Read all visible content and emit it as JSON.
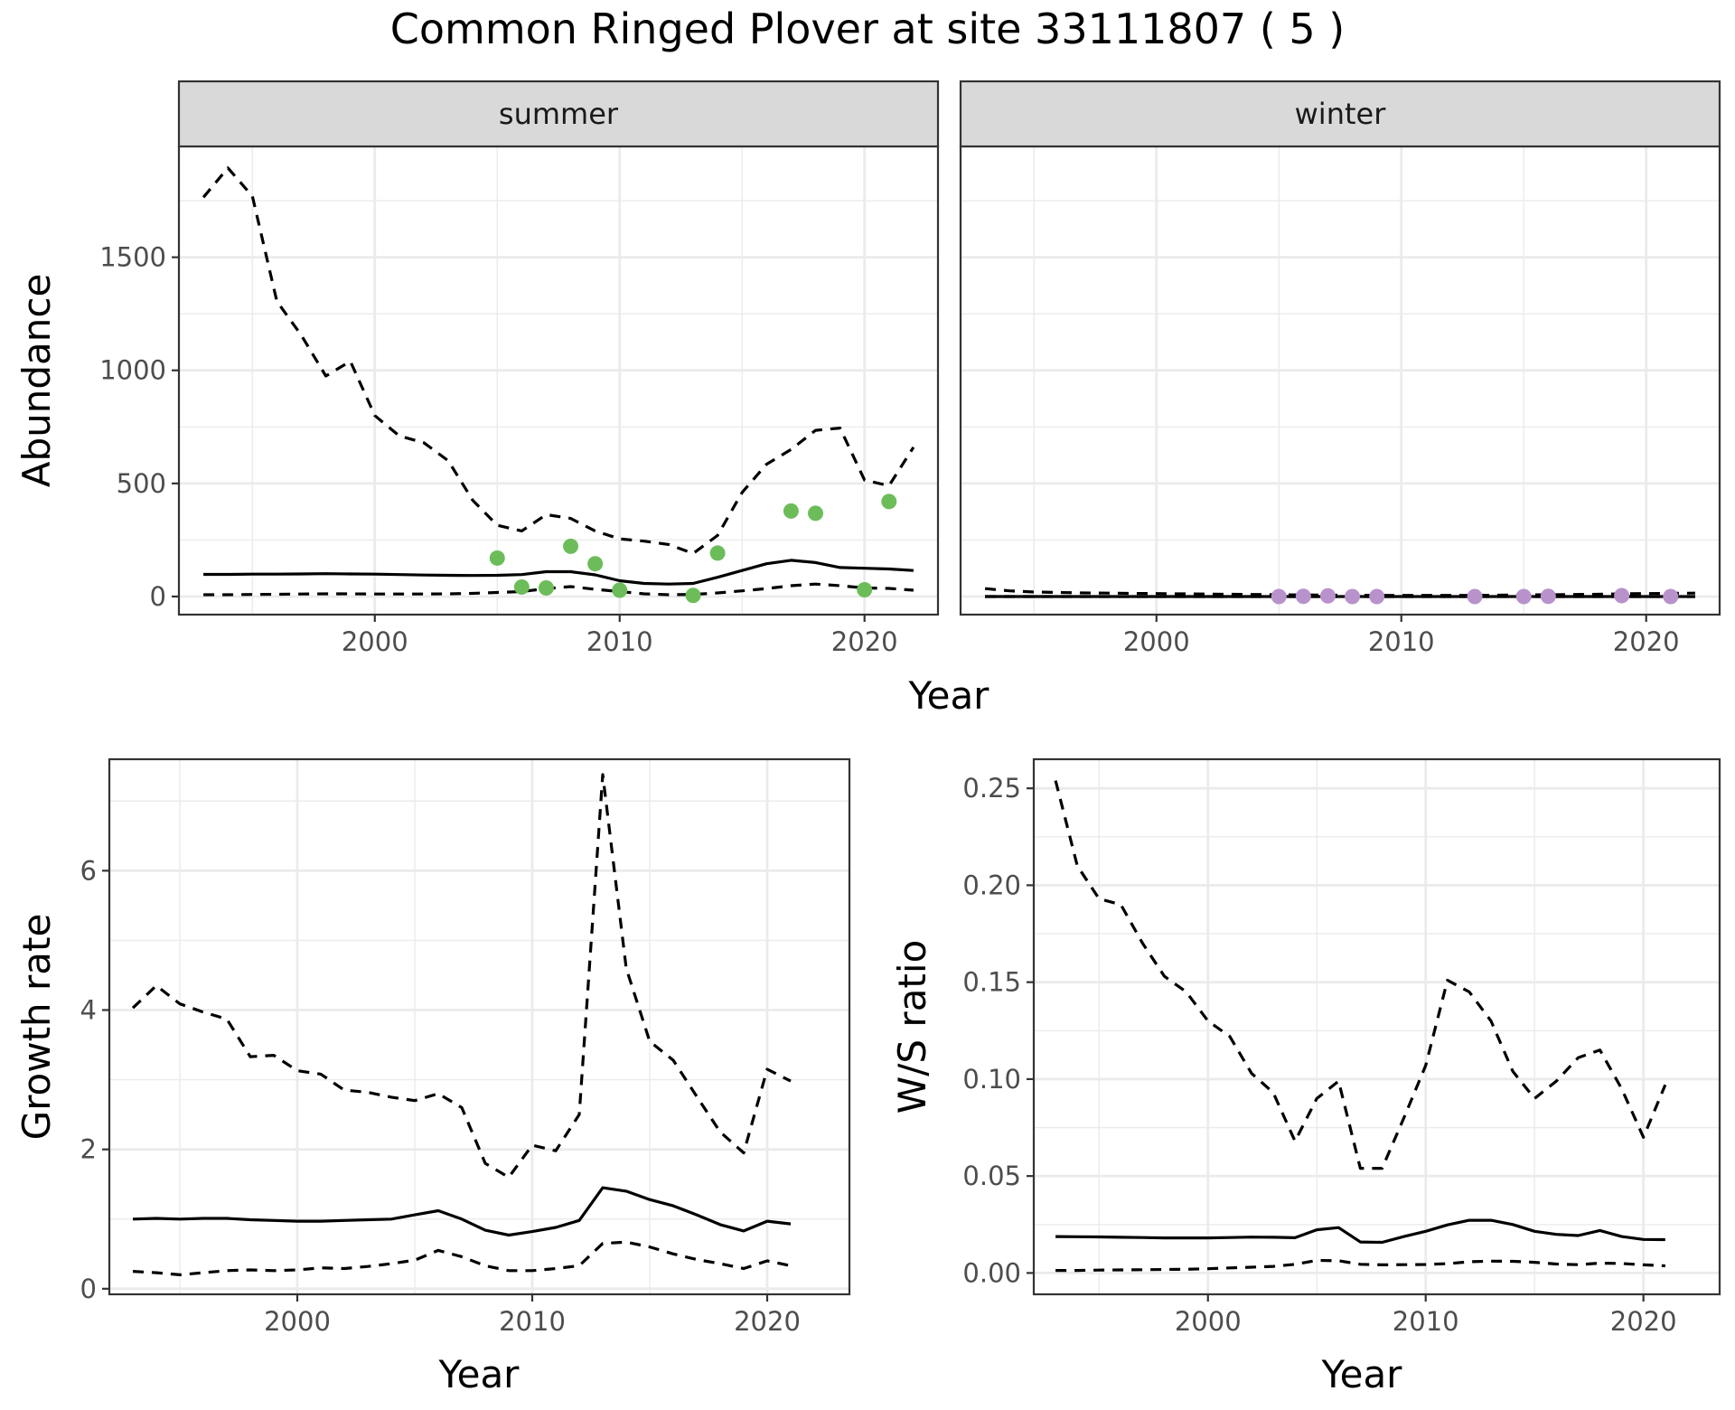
{
  "title": "Common Ringed Plover at site 33111807 ( 5 )",
  "colors": {
    "summer_points": "#6cbd5a",
    "winter_points": "#b792cb",
    "lines": "#000000",
    "strip_bg": "#d9d9d9",
    "grid": "#ebebeb"
  },
  "chart_data": [
    {
      "id": "abundance",
      "type": "line",
      "facets": [
        "summer",
        "winter"
      ],
      "xlabel": "Year",
      "ylabel": "Abundance",
      "xlim": [
        1992,
        2023
      ],
      "ylim": [
        -80,
        1990
      ],
      "x_ticks": [
        2000,
        2010,
        2020
      ],
      "y_ticks": [
        0,
        500,
        1000,
        1500
      ],
      "x": [
        1993,
        1994,
        1995,
        1996,
        1997,
        1998,
        1999,
        2000,
        2001,
        2002,
        2003,
        2004,
        2005,
        2006,
        2007,
        2008,
        2009,
        2010,
        2011,
        2012,
        2013,
        2014,
        2015,
        2016,
        2017,
        2018,
        2019,
        2020,
        2021,
        2022
      ],
      "panels": [
        {
          "facet": "summer",
          "series": [
            {
              "style": "solid",
              "values": [
                98,
                98,
                99,
                99,
                100,
                101,
                100,
                99,
                97,
                95,
                94,
                93,
                94,
                97,
                110,
                110,
                96,
                70,
                58,
                55,
                58,
                85,
                115,
                145,
                160,
                150,
                128,
                125,
                122,
                115
              ]
            },
            {
              "style": "dashed",
              "values": [
                1765,
                1895,
                1770,
                1305,
                1155,
                975,
                1040,
                800,
                710,
                680,
                600,
                425,
                315,
                290,
                362,
                345,
                290,
                255,
                245,
                230,
                190,
                270,
                460,
                585,
                650,
                735,
                745,
                515,
                490,
                660
              ]
            },
            {
              "style": "dashed",
              "values": [
                8,
                8,
                9,
                10,
                11,
                12,
                12,
                11,
                11,
                11,
                12,
                14,
                18,
                22,
                35,
                44,
                32,
                22,
                12,
                8,
                9,
                16,
                25,
                35,
                48,
                55,
                48,
                38,
                36,
                28
              ]
            }
          ],
          "points": {
            "x": [
              2005,
              2006,
              2007,
              2008,
              2009,
              2010,
              2013,
              2014,
              2017,
              2018,
              2020,
              2021
            ],
            "y": [
              170,
              42,
              38,
              222,
              145,
              28,
              5,
              192,
              378,
              368,
              30,
              420
            ]
          }
        },
        {
          "facet": "winter",
          "series": [
            {
              "style": "solid",
              "values": [
                0,
                0,
                0,
                0,
                0,
                0,
                0,
                0,
                0,
                0,
                0,
                0,
                0,
                0,
                0,
                0,
                0,
                0,
                0,
                0,
                0,
                0,
                0,
                0,
                0,
                0,
                0,
                0,
                0,
                0
              ]
            },
            {
              "style": "dashed",
              "values": [
                35,
                25,
                20,
                18,
                16,
                15,
                14,
                13,
                12,
                11,
                10,
                9,
                8,
                7,
                6,
                6,
                5,
                5,
                5,
                5,
                5,
                6,
                7,
                8,
                9,
                10,
                12,
                13,
                14,
                15
              ]
            },
            {
              "style": "dashed",
              "values": [
                0,
                0,
                0,
                0,
                0,
                0,
                0,
                0,
                0,
                0,
                0,
                0,
                0,
                0,
                0,
                0,
                0,
                0,
                0,
                0,
                0,
                0,
                0,
                0,
                0,
                0,
                0,
                0,
                0,
                0
              ]
            }
          ],
          "points": {
            "x": [
              2005,
              2006,
              2007,
              2008,
              2009,
              2013,
              2015,
              2016,
              2019,
              2021
            ],
            "y": [
              0,
              1,
              3,
              0,
              0,
              0,
              0,
              1,
              4,
              0
            ]
          }
        }
      ]
    },
    {
      "id": "growth",
      "type": "line",
      "xlabel": "Year",
      "ylabel": "Growth rate",
      "xlim": [
        1992,
        2023.5
      ],
      "ylim": [
        -0.08,
        7.6
      ],
      "x_ticks": [
        2000,
        2010,
        2020
      ],
      "y_ticks": [
        0,
        2,
        4,
        6
      ],
      "x": [
        1993,
        1994,
        1995,
        1996,
        1997,
        1998,
        1999,
        2000,
        2001,
        2002,
        2003,
        2004,
        2005,
        2006,
        2007,
        2008,
        2009,
        2010,
        2011,
        2012,
        2013,
        2014,
        2015,
        2016,
        2017,
        2018,
        2019,
        2020,
        2021
      ],
      "series": [
        {
          "style": "solid",
          "values": [
            1.0,
            1.01,
            1.0,
            1.01,
            1.01,
            0.99,
            0.98,
            0.97,
            0.97,
            0.98,
            0.99,
            1.0,
            1.06,
            1.12,
            1.0,
            0.84,
            0.77,
            0.82,
            0.88,
            0.98,
            1.45,
            1.4,
            1.28,
            1.19,
            1.06,
            0.92,
            0.83,
            0.97,
            0.93
          ]
        },
        {
          "style": "dashed",
          "values": [
            4.03,
            4.35,
            4.09,
            3.97,
            3.87,
            3.33,
            3.35,
            3.13,
            3.08,
            2.85,
            2.82,
            2.75,
            2.7,
            2.8,
            2.6,
            1.8,
            1.6,
            2.06,
            1.98,
            2.5,
            7.38,
            4.6,
            3.55,
            3.28,
            2.76,
            2.25,
            1.95,
            3.15,
            2.98
          ]
        },
        {
          "style": "dashed",
          "values": [
            0.25,
            0.23,
            0.2,
            0.23,
            0.26,
            0.27,
            0.26,
            0.27,
            0.3,
            0.29,
            0.32,
            0.36,
            0.41,
            0.55,
            0.46,
            0.33,
            0.26,
            0.26,
            0.29,
            0.33,
            0.65,
            0.67,
            0.6,
            0.5,
            0.42,
            0.36,
            0.29,
            0.4,
            0.33
          ]
        }
      ]
    },
    {
      "id": "ws_ratio",
      "type": "line",
      "xlabel": "Year",
      "ylabel": "W/S ratio",
      "xlim": [
        1992,
        2023.5
      ],
      "ylim": [
        -0.011,
        0.265
      ],
      "x_ticks": [
        2000,
        2010,
        2020
      ],
      "y_ticks": [
        0.0,
        0.05,
        0.1,
        0.15,
        0.2,
        0.25
      ],
      "y_tick_labels": [
        "0.00",
        "0.05",
        "0.10",
        "0.15",
        "0.20",
        "0.25"
      ],
      "x": [
        1993,
        1994,
        1995,
        1996,
        1997,
        1998,
        1999,
        2000,
        2001,
        2002,
        2003,
        2004,
        2005,
        2006,
        2007,
        2008,
        2009,
        2010,
        2011,
        2012,
        2013,
        2014,
        2015,
        2016,
        2017,
        2018,
        2019,
        2020,
        2021
      ],
      "series": [
        {
          "style": "solid",
          "values": [
            0.0188,
            0.0187,
            0.0186,
            0.0184,
            0.0183,
            0.0181,
            0.0181,
            0.0181,
            0.0183,
            0.0185,
            0.0184,
            0.0182,
            0.0223,
            0.0234,
            0.016,
            0.0158,
            0.0188,
            0.0215,
            0.0248,
            0.0272,
            0.0272,
            0.025,
            0.0215,
            0.0199,
            0.0193,
            0.0219,
            0.0188,
            0.0173,
            0.0172
          ]
        },
        {
          "style": "dashed",
          "values": [
            0.254,
            0.21,
            0.193,
            0.19,
            0.17,
            0.153,
            0.145,
            0.13,
            0.122,
            0.103,
            0.093,
            0.068,
            0.09,
            0.099,
            0.054,
            0.054,
            0.08,
            0.107,
            0.151,
            0.145,
            0.13,
            0.104,
            0.09,
            0.099,
            0.111,
            0.115,
            0.095,
            0.07,
            0.097
          ]
        },
        {
          "style": "dashed",
          "values": [
            0.0013,
            0.0013,
            0.0015,
            0.0016,
            0.0017,
            0.0018,
            0.0019,
            0.0022,
            0.0026,
            0.003,
            0.0034,
            0.0045,
            0.0065,
            0.0063,
            0.0045,
            0.0042,
            0.0043,
            0.0044,
            0.0048,
            0.0058,
            0.0061,
            0.006,
            0.0055,
            0.0046,
            0.0043,
            0.0051,
            0.0049,
            0.0042,
            0.0037
          ]
        }
      ]
    }
  ]
}
